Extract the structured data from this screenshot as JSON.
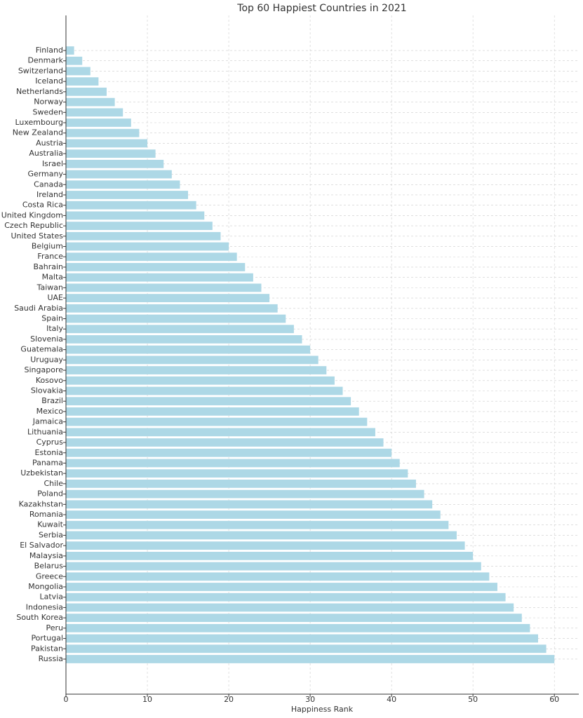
{
  "chart_data": {
    "type": "bar",
    "orientation": "horizontal",
    "title": "Top 60 Happiest Countries in 2021",
    "x_label": "Happiness Rank",
    "categories": [
      "Finland",
      "Denmark",
      "Switzerland",
      "Iceland",
      "Netherlands",
      "Norway",
      "Sweden",
      "Luxembourg",
      "New Zealand",
      "Austria",
      "Australia",
      "Israel",
      "Germany",
      "Canada",
      "Ireland",
      "Costa Rica",
      "United Kingdom",
      "Czech Republic",
      "United States",
      "Belgium",
      "France",
      "Bahrain",
      "Malta",
      "Taiwan",
      "UAE",
      "Saudi Arabia",
      "Spain",
      "Italy",
      "Slovenia",
      "Guatemala",
      "Uruguay",
      "Singapore",
      "Kosovo",
      "Slovakia",
      "Brazil",
      "Mexico",
      "Jamaica",
      "Lithuania",
      "Cyprus",
      "Estonia",
      "Panama",
      "Uzbekistan",
      "Chile",
      "Poland",
      "Kazakhstan",
      "Romania",
      "Kuwait",
      "Serbia",
      "El Salvador",
      "Malaysia",
      "Belarus",
      "Greece",
      "Mongolia",
      "Latvia",
      "Indonesia",
      "South Korea",
      "Peru",
      "Portugal",
      "Pakistan",
      "Russia"
    ],
    "values": [
      1,
      2,
      3,
      4,
      5,
      6,
      7,
      8,
      9,
      10,
      11,
      12,
      13,
      14,
      15,
      16,
      17,
      18,
      19,
      20,
      21,
      22,
      23,
      24,
      25,
      26,
      27,
      28,
      29,
      30,
      31,
      32,
      33,
      34,
      35,
      36,
      37,
      38,
      39,
      40,
      41,
      42,
      43,
      44,
      45,
      46,
      47,
      48,
      49,
      50,
      51,
      52,
      53,
      54,
      55,
      56,
      57,
      58,
      59,
      60
    ],
    "color": "#add8e6",
    "xlim": [
      0,
      63
    ],
    "xticks": [
      0,
      10,
      20,
      30,
      40,
      50,
      60
    ],
    "grid": true
  }
}
